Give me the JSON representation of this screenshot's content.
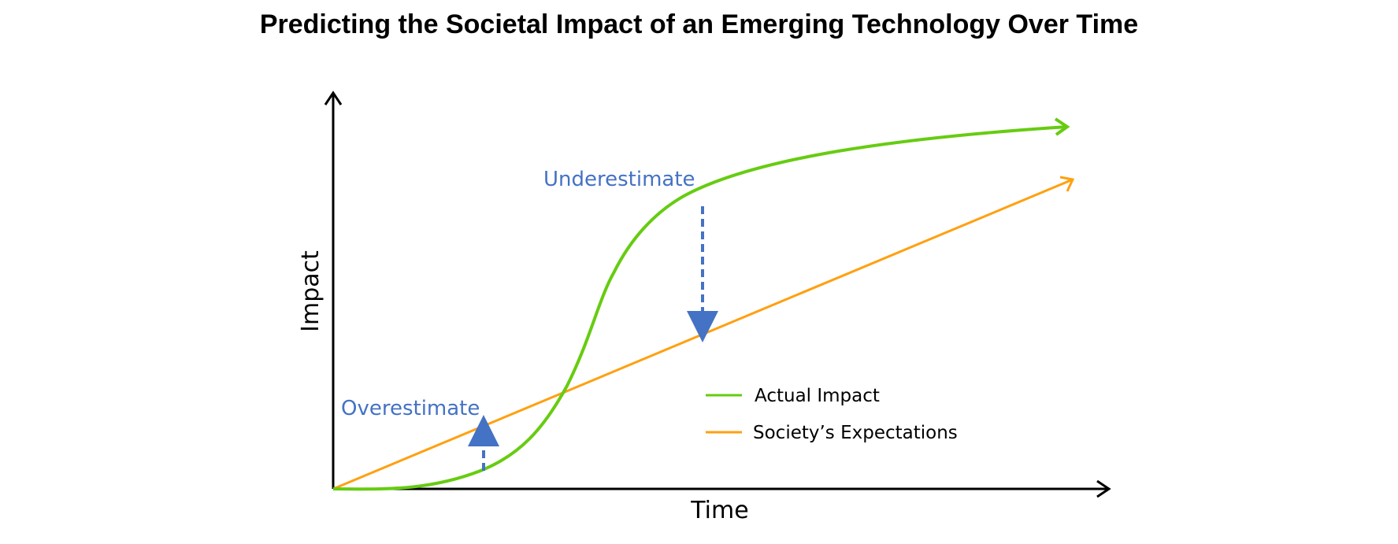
{
  "title": "Predicting the Societal Impact of an Emerging Technology Over Time",
  "axes": {
    "x_label": "Time",
    "y_label": "Impact"
  },
  "annotations": {
    "overestimate": "Overestimate",
    "underestimate": "Underestimate"
  },
  "legend": [
    {
      "label": "Actual Impact",
      "color": "#66cc11"
    },
    {
      "label": "Society’s Expectations",
      "color": "#ffa010"
    }
  ],
  "colors": {
    "annotation": "#4472c4",
    "axis": "#000000"
  }
}
